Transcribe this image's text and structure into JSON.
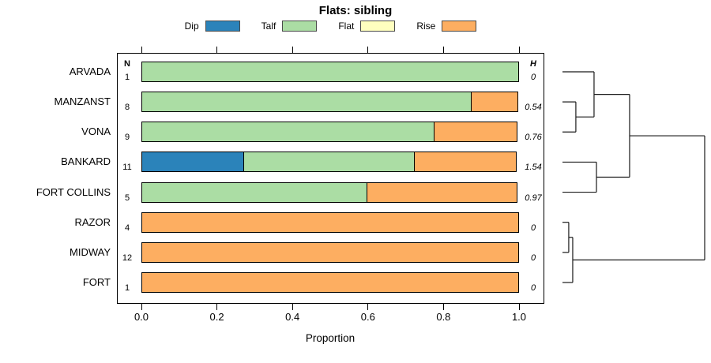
{
  "chart_data": {
    "type": "bar",
    "subtype": "horizontal-stacked-proportion-with-dendrogram",
    "title": "Flats: sibling",
    "xlabel": "Proportion",
    "xlim": [
      0.0,
      1.0
    ],
    "x_tick_values": [
      0.0,
      0.2,
      0.4,
      0.6,
      0.8,
      1.0
    ],
    "x_tick_labels": [
      "0.0",
      "0.2",
      "0.4",
      "0.6",
      "0.8",
      "1.0"
    ],
    "grid": false,
    "legend": {
      "position": "top",
      "entries": [
        {
          "label": "Dip",
          "color": "#2b83ba"
        },
        {
          "label": "Talf",
          "color": "#abdda4"
        },
        {
          "label": "Flat",
          "color": "#ffffbf"
        },
        {
          "label": "Rise",
          "color": "#fdae61"
        }
      ]
    },
    "palette": {
      "Dip": "#2b83ba",
      "Talf": "#abdda4",
      "Flat": "#ffffbf",
      "Rise": "#fdae61"
    },
    "col_headers": {
      "n": "N",
      "h": "H"
    },
    "categories": [
      "ARVADA",
      "MANZANST",
      "VONA",
      "BANKARD",
      "FORT COLLINS",
      "RAZOR",
      "MIDWAY",
      "FORT"
    ],
    "rows": [
      {
        "label": "ARVADA",
        "n": "1",
        "h": "0",
        "segments": [
          [
            "Talf",
            1.0
          ]
        ]
      },
      {
        "label": "MANZANST",
        "n": "8",
        "h": "0.54",
        "segments": [
          [
            "Talf",
            0.875
          ],
          [
            "Rise",
            0.125
          ]
        ]
      },
      {
        "label": "VONA",
        "n": "9",
        "h": "0.76",
        "segments": [
          [
            "Talf",
            0.778
          ],
          [
            "Rise",
            0.222
          ]
        ]
      },
      {
        "label": "BANKARD",
        "n": "11",
        "h": "1.54",
        "segments": [
          [
            "Dip",
            0.273
          ],
          [
            "Talf",
            0.455
          ],
          [
            "Rise",
            0.272
          ]
        ]
      },
      {
        "label": "FORT COLLINS",
        "n": "5",
        "h": "0.97",
        "segments": [
          [
            "Talf",
            0.6
          ],
          [
            "Rise",
            0.4
          ]
        ]
      },
      {
        "label": "RAZOR",
        "n": "4",
        "h": "0",
        "segments": [
          [
            "Rise",
            1.0
          ]
        ]
      },
      {
        "label": "MIDWAY",
        "n": "12",
        "h": "0",
        "segments": [
          [
            "Rise",
            1.0
          ]
        ]
      },
      {
        "label": "FORT",
        "n": "1",
        "h": "0",
        "segments": [
          [
            "Rise",
            1.0
          ]
        ]
      }
    ],
    "dendrogram": {
      "side": "right",
      "leaves": [
        "ARVADA",
        "MANZANST",
        "VONA",
        "BANKARD",
        "FORT COLLINS",
        "RAZOR",
        "MIDWAY",
        "FORT"
      ],
      "merges": [
        {
          "id": "m1",
          "a": "MANZANST",
          "b": "VONA",
          "x": 0.094
        },
        {
          "id": "m2",
          "a": "ARVADA",
          "b": "m1",
          "x": 0.222
        },
        {
          "id": "m3",
          "a": "BANKARD",
          "b": "FORT COLLINS",
          "x": 0.239
        },
        {
          "id": "m4",
          "a": "m2",
          "b": "m3",
          "x": 0.472
        },
        {
          "id": "m5",
          "a": "RAZOR",
          "b": "MIDWAY",
          "x": 0.044
        },
        {
          "id": "m6",
          "a": "m5",
          "b": "FORT",
          "x": 0.072
        },
        {
          "id": "root",
          "a": "m4",
          "b": "m6",
          "x": 1.0
        }
      ]
    }
  }
}
